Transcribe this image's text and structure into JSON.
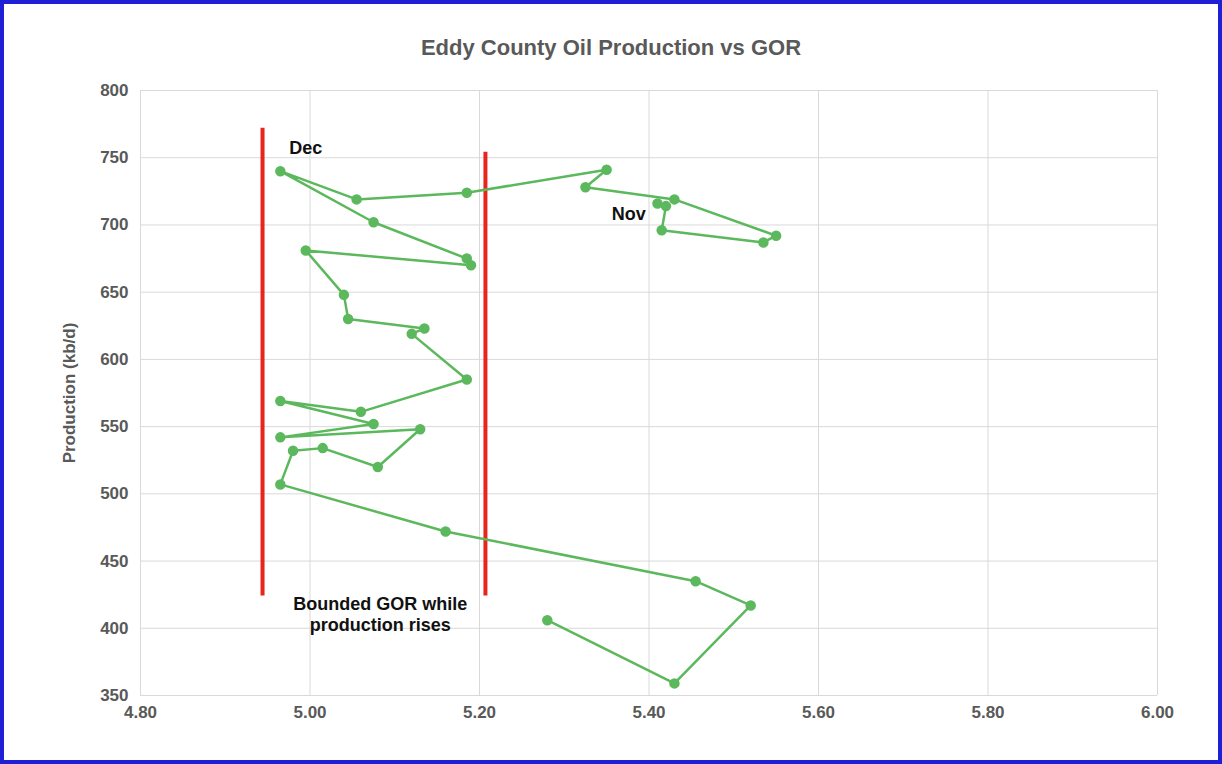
{
  "chart_data": {
    "type": "line",
    "title": "Eddy County Oil Production vs GOR",
    "y_label": "Production (kb/d)",
    "x": [
      5.28,
      5.43,
      5.52,
      5.455,
      5.16,
      4.965,
      4.98,
      5.015,
      5.08,
      5.13,
      4.965,
      5.075,
      4.965,
      5.06,
      5.185,
      5.12,
      5.135,
      5.045,
      5.04,
      4.995,
      5.19,
      5.185,
      5.075,
      4.965,
      5.055,
      5.185,
      5.35,
      5.325,
      5.43,
      5.55,
      5.535,
      5.415,
      5.42,
      5.41
    ],
    "values": [
      406,
      359,
      417,
      435,
      472,
      507,
      532,
      534,
      520,
      548,
      542,
      552,
      569,
      561,
      585,
      619,
      623,
      630,
      648,
      681,
      670,
      675,
      702,
      740,
      719,
      724,
      741,
      728,
      719,
      692,
      687,
      696,
      714,
      716
    ],
    "color": "#5cb85c",
    "marker": "circle",
    "xlim": [
      4.8,
      6.0
    ],
    "xticks": [
      {
        "value": 4.8,
        "label": "4.80"
      },
      {
        "value": 5.0,
        "label": "5.00"
      },
      {
        "value": 5.2,
        "label": "5.20"
      },
      {
        "value": 5.4,
        "label": "5.40"
      },
      {
        "value": 5.6,
        "label": "5.60"
      },
      {
        "value": 5.8,
        "label": "5.80"
      },
      {
        "value": 6.0,
        "label": "6.00"
      }
    ],
    "ylim": [
      350,
      800
    ],
    "yticks": [
      350,
      400,
      450,
      500,
      550,
      600,
      650,
      700,
      750,
      800
    ],
    "grid": true,
    "reference_lines": [
      {
        "x": 4.944,
        "y": [
          424,
          772
        ],
        "color": "#e8251d"
      },
      {
        "x": 5.207,
        "y": [
          424,
          754
        ],
        "color": "#e8251d"
      }
    ],
    "annotations": [
      {
        "text": "Dec",
        "x": 4.995,
        "y": 758
      },
      {
        "text": "Nov",
        "x": 5.376,
        "y": 709
      },
      {
        "text": "Bounded GOR while\nproduction rises",
        "x": 5.083,
        "y": 411
      }
    ]
  }
}
